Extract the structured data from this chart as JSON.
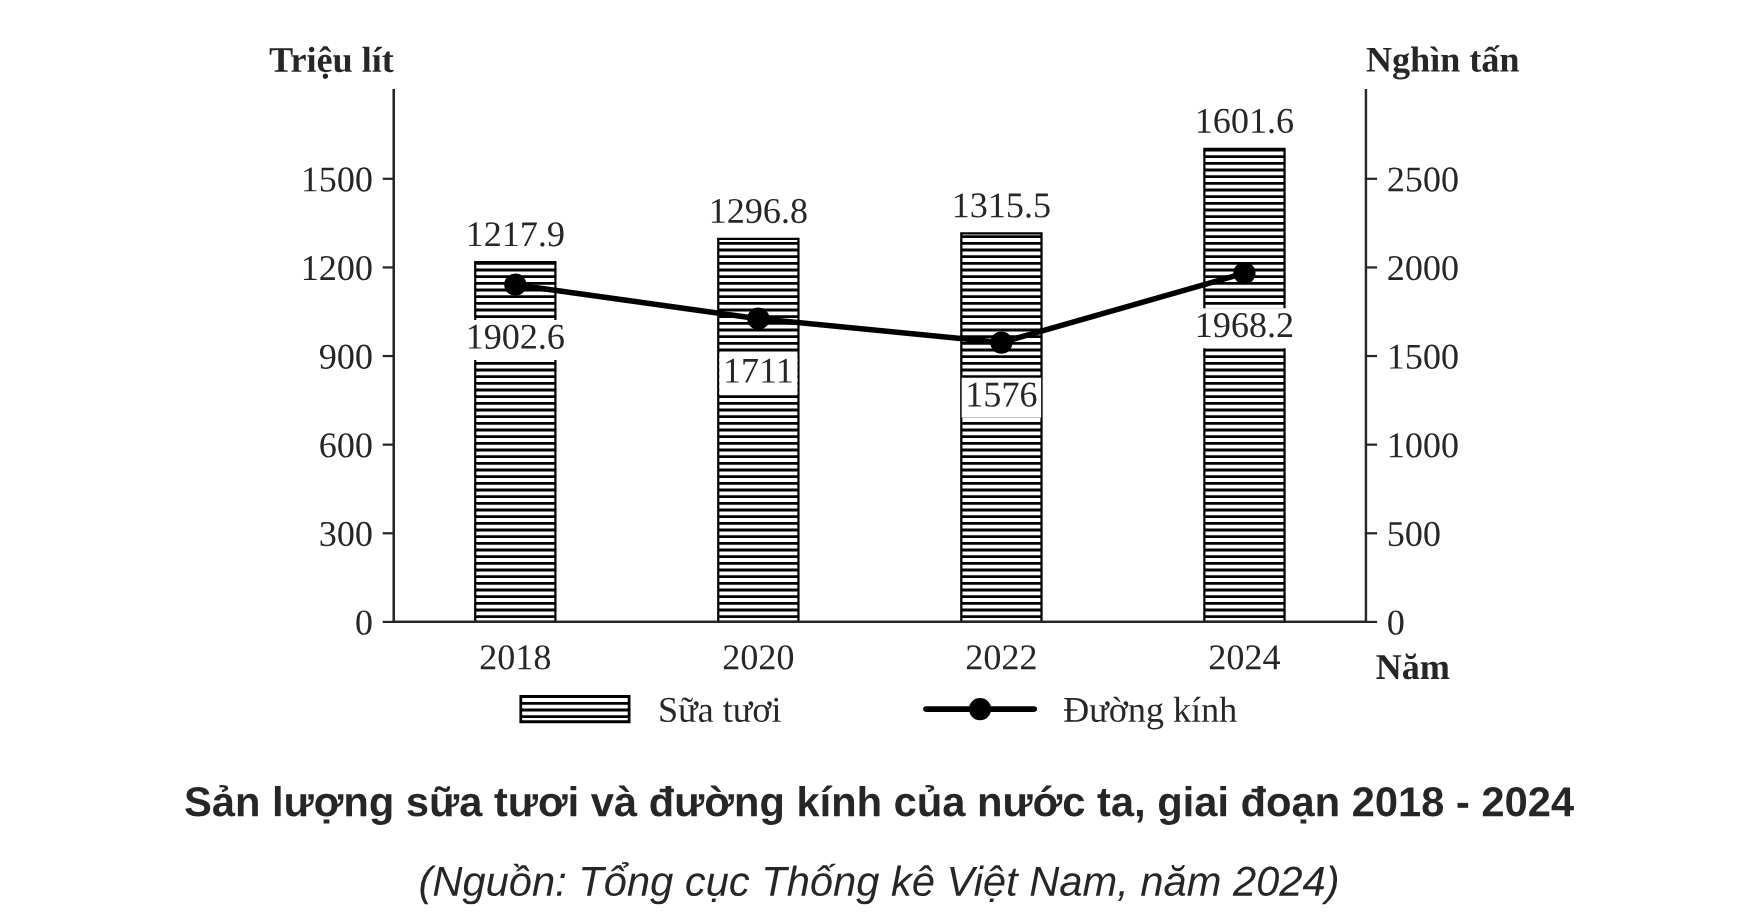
{
  "chart_data": {
    "type": "bar",
    "title": "Sản lượng sữa tươi và đường kính của nước ta, giai đoạn 2018 - 2024",
    "annotations": [
      "(Nguồn: Tổng cục Thống kê Việt Nam, năm 2024)"
    ],
    "xlabel": "Năm",
    "ylabel": "Triệu lít",
    "y2label": "Nghìn tấn",
    "categories": [
      "2018",
      "2020",
      "2022",
      "2024"
    ],
    "series": [
      {
        "name": "Sữa tươi",
        "color": "#000000",
        "values": [
          1217.9,
          1296.8,
          1315.5,
          1601.6
        ]
      },
      {
        "name": "Đường kính",
        "type": "line",
        "axis": "y2",
        "color": "#000000",
        "values": [
          1902.6,
          1711,
          1576,
          1968.2
        ]
      }
    ],
    "ylim": [
      0,
      1800
    ],
    "yticks": [
      0,
      300,
      600,
      900,
      1200,
      1500
    ],
    "y2lim": [
      0,
      3000
    ],
    "y2ticks": [
      0,
      500,
      1000,
      1500,
      2000,
      2500
    ],
    "data_labels": true,
    "legend": "bottom",
    "marker": "circle",
    "line_style": "solid",
    "grid": false
  }
}
